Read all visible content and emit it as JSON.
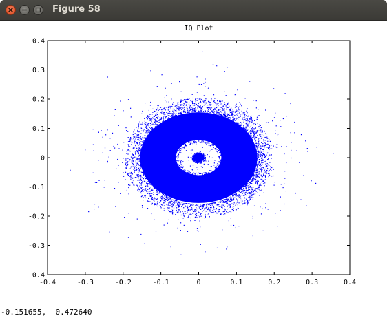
{
  "window": {
    "title": "Figure 58",
    "buttons": [
      "close",
      "minimize",
      "maximize"
    ]
  },
  "status": {
    "coords": "-0.151655,  0.472640"
  },
  "chart_data": {
    "type": "scatter",
    "title": "IQ Plot",
    "xlabel": "",
    "ylabel": "",
    "xlim": [
      -0.4,
      0.4
    ],
    "ylim": [
      -0.4,
      0.4
    ],
    "xticks": [
      "-0.4",
      "-0.3",
      "-0.2",
      "-0.1",
      "0",
      "0.1",
      "0.2",
      "0.3",
      "0.4"
    ],
    "yticks": [
      "0.4",
      "0.3",
      "0.2",
      "0.1",
      "0",
      "-0.1",
      "-0.2",
      "-0.3",
      "-0.4"
    ],
    "grid": false,
    "point_color": "#0000ff",
    "clusters": [
      {
        "shape": "disc",
        "center": [
          0.0,
          0.0
        ],
        "radius": 0.015
      },
      {
        "shape": "ring",
        "center": [
          0.0,
          0.0
        ],
        "inner_radius": 0.06,
        "outer_radius": 0.155
      },
      {
        "shape": "halo",
        "center": [
          0.0,
          0.0
        ],
        "inner_radius": 0.155,
        "outer_radius": 0.2
      },
      {
        "shape": "outliers",
        "center": [
          0.0,
          0.0
        ],
        "max_radius": 0.38
      }
    ]
  }
}
